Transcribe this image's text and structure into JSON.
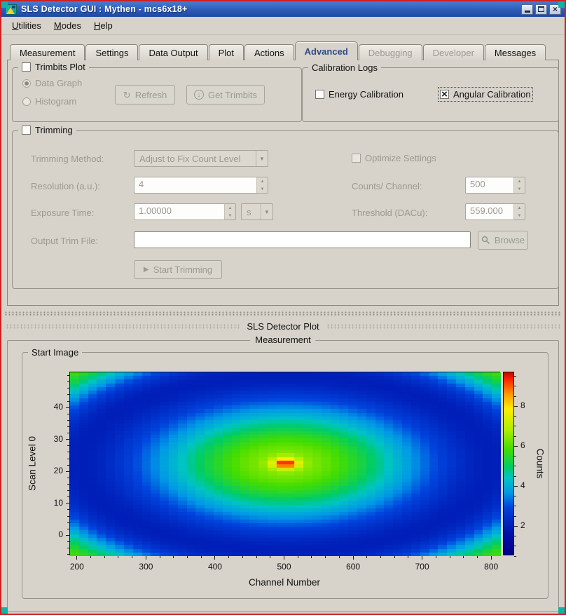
{
  "window": {
    "title": "SLS Detector GUI : Mythen - mcs6x18+"
  },
  "menubar": {
    "items": [
      {
        "label": "Utilities"
      },
      {
        "label": "Modes"
      },
      {
        "label": "Help"
      }
    ]
  },
  "tabs": [
    {
      "label": "Measurement",
      "state": "normal"
    },
    {
      "label": "Settings",
      "state": "normal"
    },
    {
      "label": "Data Output",
      "state": "normal"
    },
    {
      "label": "Plot",
      "state": "normal"
    },
    {
      "label": "Actions",
      "state": "normal"
    },
    {
      "label": "Advanced",
      "state": "selected"
    },
    {
      "label": "Debugging",
      "state": "disabled"
    },
    {
      "label": "Developer",
      "state": "disabled"
    },
    {
      "label": "Messages",
      "state": "normal"
    }
  ],
  "trimbits_plot": {
    "title": "Trimbits Plot",
    "checked": false,
    "data_graph_label": "Data Graph",
    "data_graph_selected": true,
    "histogram_label": "Histogram",
    "histogram_selected": false,
    "refresh_label": "Refresh",
    "get_trimbits_label": "Get Trimbits"
  },
  "calibration_logs": {
    "title": "Calibration Logs",
    "energy_label": "Energy Calibration",
    "energy_checked": false,
    "angular_label": "Angular Calibration",
    "angular_checked": true
  },
  "trimming": {
    "title": "Trimming",
    "checked": false,
    "method_label": "Trimming Method:",
    "method_value": "Adjust to Fix Count Level",
    "optimize_label": "Optimize Settings",
    "optimize_checked": false,
    "resolution_label": "Resolution (a.u.):",
    "resolution_value": "4",
    "counts_label": "Counts/ Channel:",
    "counts_value": "500",
    "exposure_label": "Exposure Time:",
    "exposure_value": "1.00000",
    "exposure_unit": "s",
    "threshold_label": "Threshold (DACu):",
    "threshold_value": "559.000",
    "output_label": "Output Trim File:",
    "output_value": "",
    "browse_label": "Browse",
    "start_label": "Start Trimming"
  },
  "plot_dock": {
    "title": "SLS Detector Plot"
  },
  "measurement": {
    "title": "Measurement",
    "group_title": "Start Image"
  },
  "chart_data": {
    "type": "heatmap",
    "title": "Start Image",
    "xlabel": "Channel Number",
    "ylabel": "Scan Level 0",
    "colorbar_label": "Counts",
    "x_range": [
      190,
      814
    ],
    "y_range": [
      -6.5,
      51
    ],
    "z_range": [
      0.5,
      9.7
    ],
    "x_ticks": [
      200,
      300,
      400,
      500,
      600,
      700,
      800
    ],
    "x_minor_step": 20,
    "y_ticks": [
      0,
      10,
      20,
      30,
      40
    ],
    "y_minor_step": 2,
    "z_ticks": [
      2,
      4,
      6,
      8
    ],
    "z_minor_step": 0.5,
    "grid_cols": 48,
    "grid_rows": 50,
    "model": {
      "comment": "value(u,v) = baseline + broad gaussian + narrow center spike + corner ring, r = sqrt(((u-cx)/hx)^2+((v-cy)/hy)^2)",
      "center_x": 502,
      "center_y": 22.5,
      "half_x": 312,
      "half_y": 28.75,
      "baseline": 0.6,
      "broad": {
        "amp": 5.9,
        "scale": 0.72
      },
      "spike": {
        "amp": 3.2,
        "scale": 0.06
      },
      "ring": {
        "amp": 5.2,
        "r0": 1.45,
        "width": 0.3
      }
    },
    "colormap_stops": [
      [
        0.0,
        "#000088"
      ],
      [
        0.12,
        "#0011aa"
      ],
      [
        0.26,
        "#0044dd"
      ],
      [
        0.34,
        "#0099e6"
      ],
      [
        0.42,
        "#00c4c4"
      ],
      [
        0.48,
        "#00cc66"
      ],
      [
        0.58,
        "#44dd00"
      ],
      [
        0.68,
        "#aaee00"
      ],
      [
        0.8,
        "#ffee00"
      ],
      [
        0.88,
        "#ff9900"
      ],
      [
        0.95,
        "#ff3300"
      ],
      [
        1.0,
        "#cc0000"
      ]
    ],
    "description": "2D scan image: broad elliptical green/yellow blob centred near channel 502 / scan level 24 with a small red-orange peak spot, dark blue elliptical ring toward edges, teal-green banded corners"
  }
}
